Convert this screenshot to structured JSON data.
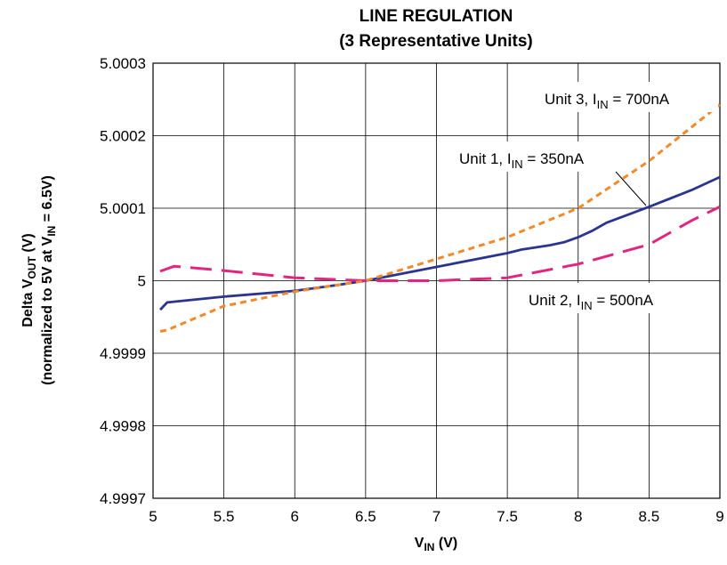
{
  "chart_data": {
    "type": "line",
    "title": "LINE REGULATION",
    "subtitle": "(3 Representative Units)",
    "xlabel": {
      "main": "V",
      "sub": "IN",
      "rest": " (V)"
    },
    "ylabel": {
      "line1": {
        "main": "Delta V",
        "sub": "OUT",
        "rest": " (V)"
      },
      "line2": {
        "main": "(normalized to 5V at V",
        "sub": "IN",
        "rest": " = 6.5V)"
      }
    },
    "xlim": [
      5,
      9
    ],
    "ylim": [
      4.9997,
      5.0003
    ],
    "x_ticks": [
      5,
      5.5,
      6,
      6.5,
      7,
      7.5,
      8,
      8.5,
      9
    ],
    "x_tick_labels": [
      "5",
      "5.5",
      "6",
      "6.5",
      "7",
      "7.5",
      "8",
      "8.5",
      "9"
    ],
    "y_ticks": [
      4.9997,
      4.9998,
      4.9999,
      5,
      5.0001,
      5.0002,
      5.0003
    ],
    "y_tick_labels": [
      "4.9997",
      "4.9998",
      "4.9999",
      "5",
      "5.0001",
      "5.0002",
      "5.0003"
    ],
    "grid": true,
    "series": [
      {
        "name": {
          "main": "Unit 1, I",
          "sub": "IN",
          "rest": " = 350nA"
        },
        "color": "#2b3590",
        "style": "solid",
        "x": [
          5.05,
          5.1,
          5.5,
          6.0,
          6.3,
          6.5,
          7.0,
          7.5,
          7.6,
          7.8,
          7.9,
          8.0,
          8.1,
          8.2,
          8.5,
          8.8,
          9.0
        ],
        "y": [
          4.99996,
          4.99997,
          4.999978,
          4.999986,
          4.999994,
          5.0,
          5.000019,
          5.000038,
          5.000043,
          5.000049,
          5.000053,
          5.00006,
          5.000069,
          5.00008,
          5.000102,
          5.000125,
          5.000143
        ]
      },
      {
        "name": {
          "main": "Unit 2, I",
          "sub": "IN",
          "rest": " = 500nA"
        },
        "color": "#e0267f",
        "style": "long-dash",
        "x": [
          5.05,
          5.15,
          5.5,
          6.0,
          6.5,
          7.0,
          7.5,
          8.0,
          8.5,
          8.8,
          9.0
        ],
        "y": [
          5.000013,
          5.00002,
          5.000014,
          5.000004,
          5.0,
          5.0,
          5.000004,
          5.000023,
          5.00005,
          5.000083,
          5.000102
        ]
      },
      {
        "name": {
          "main": "Unit 3, I",
          "sub": "IN",
          "rest": " = 700nA"
        },
        "color": "#f08a2c",
        "style": "short-dash",
        "x": [
          5.05,
          5.1,
          5.5,
          6.0,
          6.5,
          7.0,
          7.5,
          8.0,
          8.5,
          9.0
        ],
        "y": [
          4.99993,
          4.999932,
          4.999965,
          4.999985,
          5.0,
          5.00003,
          5.00006,
          5.0001,
          5.000165,
          5.000243
        ]
      }
    ]
  }
}
